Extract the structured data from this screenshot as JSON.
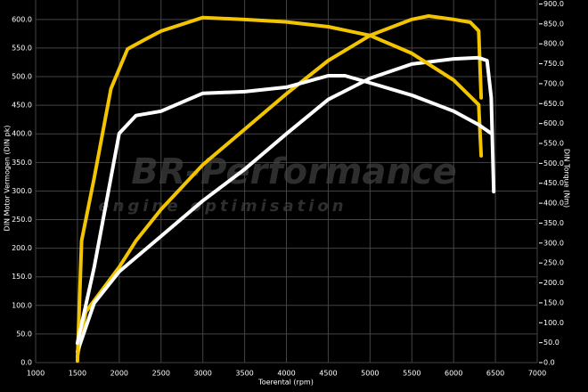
{
  "chart_data": {
    "type": "line",
    "watermark": {
      "title": "BR-Performance",
      "subtitle": "engine optimisation"
    },
    "xlabel": "Toerental (rpm)",
    "ylabel": "DIN Motor Vermogen (DIN pk)",
    "y2label": "DIN Torque (Nm)",
    "xlim": [
      1000,
      7000
    ],
    "xticks": [
      1000,
      1500,
      2000,
      2500,
      3000,
      3500,
      4000,
      4500,
      5000,
      5500,
      6000,
      6500,
      7000
    ],
    "ylim": [
      0,
      634
    ],
    "yticks": [
      {
        "value": 0,
        "label": "0.0"
      },
      {
        "value": 50,
        "label": "50.0"
      },
      {
        "value": 100,
        "label": "100.0"
      },
      {
        "value": 150,
        "label": "150.0"
      },
      {
        "value": 200,
        "label": "200.0"
      },
      {
        "value": 250,
        "label": "250.0"
      },
      {
        "value": 300,
        "label": "300.0"
      },
      {
        "value": 350,
        "label": "350.0"
      },
      {
        "value": 400,
        "label": "400.0"
      },
      {
        "value": 450,
        "label": "450.0"
      },
      {
        "value": 500,
        "label": "500.0"
      },
      {
        "value": 550,
        "label": "550.0"
      },
      {
        "value": 600,
        "label": "600.0"
      }
    ],
    "y2lim": [
      0,
      910
    ],
    "y2ticks": [
      {
        "value": 0,
        "label": "0.0"
      },
      {
        "value": 50,
        "label": "50.0"
      },
      {
        "value": 100,
        "label": "100.0"
      },
      {
        "value": 150,
        "label": "150.0"
      },
      {
        "value": 200,
        "label": "200.0"
      },
      {
        "value": 250,
        "label": "250.0"
      },
      {
        "value": 300,
        "label": "300.0"
      },
      {
        "value": 350,
        "label": "350.0"
      },
      {
        "value": 400,
        "label": "400.0"
      },
      {
        "value": 450,
        "label": "450.0"
      },
      {
        "value": 500,
        "label": "500.0"
      },
      {
        "value": 550,
        "label": "550.0"
      },
      {
        "value": 600,
        "label": "600.0"
      },
      {
        "value": 650,
        "label": "650.0"
      },
      {
        "value": 700,
        "label": "700.0"
      },
      {
        "value": 750,
        "label": "750.0"
      },
      {
        "value": 800,
        "label": "800.0"
      },
      {
        "value": 850,
        "label": "850.0"
      },
      {
        "value": 900,
        "label": "900.0"
      }
    ],
    "grid": true,
    "series": [
      {
        "color": "#f2c500",
        "axis": "y",
        "x": [
          1500,
          1600,
          2000,
          2200,
          2500,
          3000,
          3500,
          4000,
          4500,
          5000,
          5500,
          5700,
          6000,
          6200,
          6300,
          6330
        ],
        "values": [
          11,
          89,
          167,
          213,
          268,
          346,
          408,
          470,
          528,
          572,
          600,
          606,
          600,
          595,
          580,
          463
        ]
      },
      {
        "color": "#ffffff",
        "axis": "y",
        "x": [
          1500,
          1700,
          2000,
          2500,
          3000,
          3500,
          4000,
          4500,
          5000,
          5500,
          6000,
          6300,
          6400,
          6450,
          6480
        ],
        "values": [
          19,
          104,
          159,
          221,
          283,
          338,
          400,
          460,
          497,
          522,
          531,
          533,
          528,
          463,
          299
        ]
      },
      {
        "color": "#f2c500",
        "axis": "y2",
        "x": [
          1500,
          1550,
          1700,
          1900,
          2100,
          2300,
          2500,
          3000,
          3500,
          4000,
          4500,
          5000,
          5500,
          6000,
          6300,
          6330
        ],
        "values": [
          4,
          306,
          463,
          687,
          787,
          810,
          832,
          866,
          861,
          855,
          843,
          821,
          776,
          709,
          647,
          519
        ]
      },
      {
        "color": "#ffffff",
        "axis": "y2",
        "x": [
          1500,
          1700,
          2000,
          2200,
          2500,
          3000,
          3500,
          4000,
          4500,
          4700,
          5000,
          5500,
          6000,
          6300,
          6450
        ],
        "values": [
          49,
          239,
          575,
          620,
          631,
          676,
          680,
          691,
          720,
          720,
          702,
          671,
          631,
          597,
          575
        ]
      }
    ]
  }
}
